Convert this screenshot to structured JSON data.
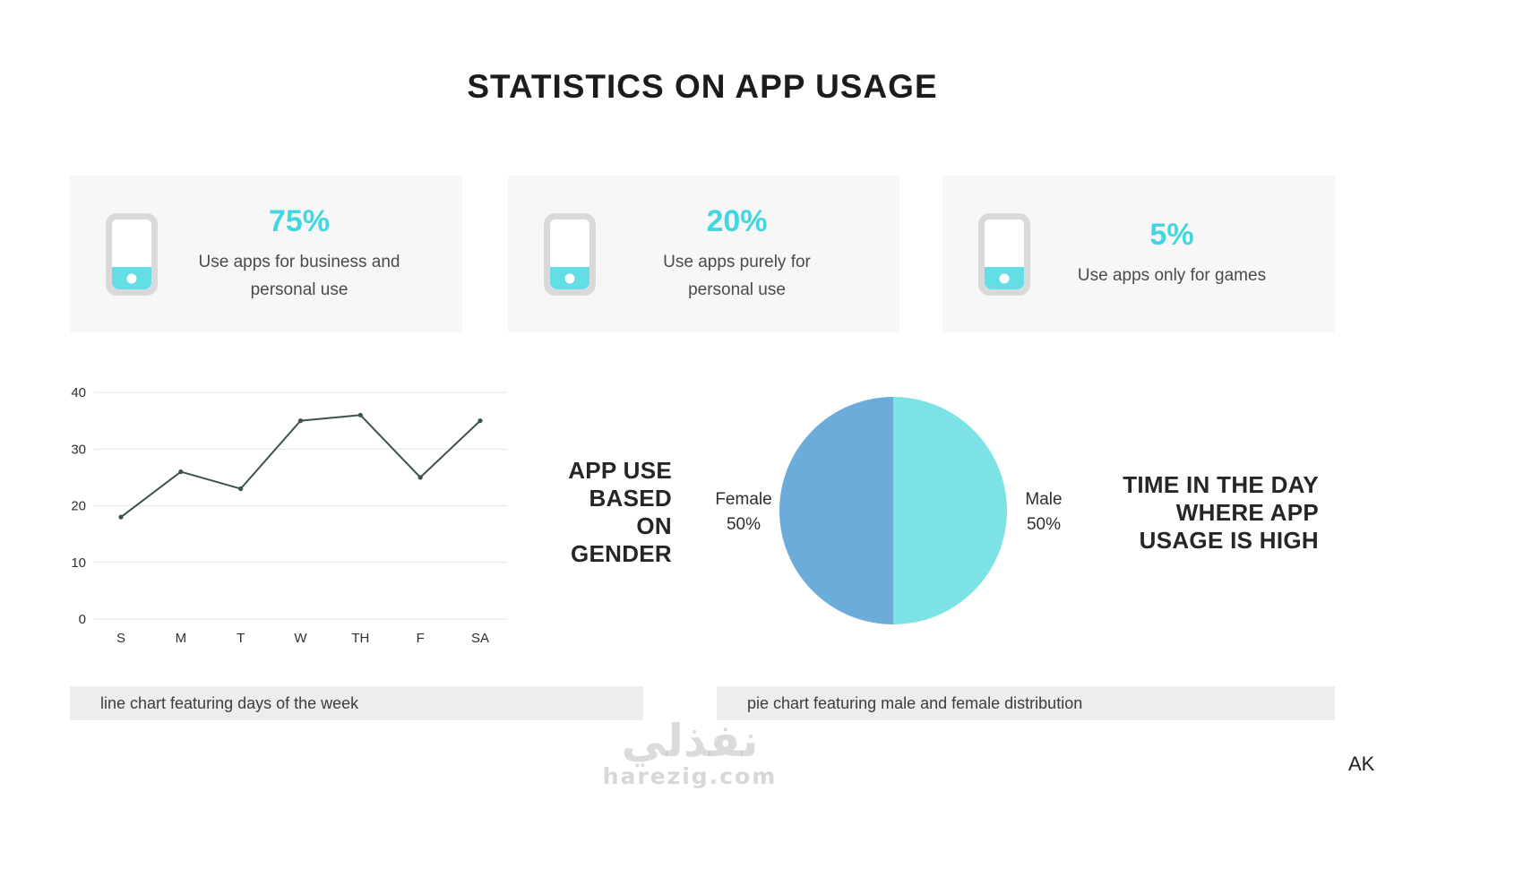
{
  "page": {
    "title": "STATISTICS ON APP USAGE",
    "signature": "AK",
    "watermark": {
      "line1": "نفذلي",
      "line2": "harezig.com"
    }
  },
  "stat_cards": [
    {
      "icon": "phone-icon",
      "value": "75%",
      "label": "Use apps for business and personal use"
    },
    {
      "icon": "phone-icon",
      "value": "20%",
      "label": "Use apps purely for personal use"
    },
    {
      "icon": "phone-icon",
      "value": "5%",
      "label": "Use apps only for games"
    }
  ],
  "headings": {
    "gender_lines": [
      "APP USE",
      "BASED",
      "ON",
      "GENDER"
    ],
    "time_lines": [
      "TIME IN THE DAY",
      "WHERE APP",
      "USAGE IS HIGH"
    ]
  },
  "captions": {
    "line_chart": "line chart featuring days of the week",
    "pie_chart": "pie chart featuring male and female distribution"
  },
  "colors": {
    "accent_cyan": "#44d6de",
    "phone_cyan": "#62dee4",
    "line_stroke": "#3e5151",
    "pie_female": "#6cacd9",
    "pie_male": "#7de2e6"
  },
  "chart_data": [
    {
      "type": "line",
      "categories": [
        "S",
        "M",
        "T",
        "W",
        "TH",
        "F",
        "SA"
      ],
      "values": [
        18,
        26,
        23,
        35,
        36,
        25,
        35
      ],
      "ylim": [
        0,
        40
      ],
      "yticks": [
        0,
        10,
        20,
        30,
        40
      ],
      "grid": true,
      "legend": false
    },
    {
      "type": "pie",
      "slices": [
        {
          "label": "Female",
          "value": 50,
          "pct": "50%",
          "color": "#6cacd9"
        },
        {
          "label": "Male",
          "value": 50,
          "pct": "50%",
          "color": "#7de2e6"
        }
      ],
      "legend": false
    }
  ]
}
